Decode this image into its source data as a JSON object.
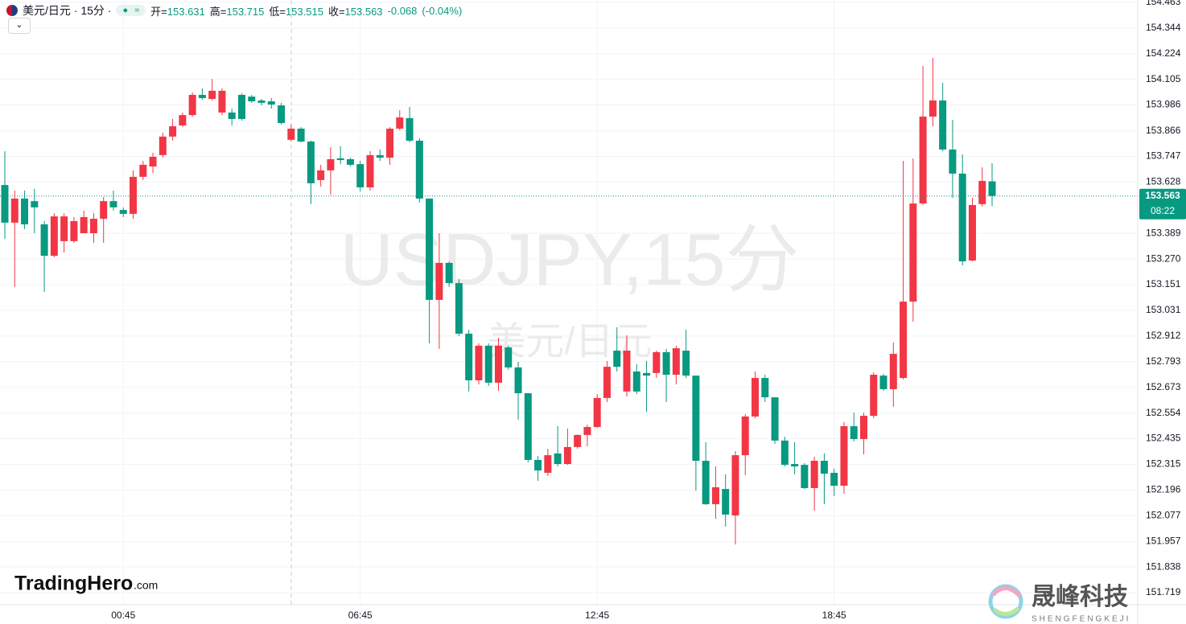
{
  "chart_data": {
    "type": "candlestick",
    "symbol_title": "美元/日元 · 15分 ·",
    "ohlc": [
      {
        "label": "开=",
        "value": 153.631
      },
      {
        "label": "高=",
        "value": 153.715
      },
      {
        "label": "低=",
        "value": 153.515
      },
      {
        "label": "收=",
        "value": 153.563
      }
    ],
    "change": -0.068,
    "change_pct": "(-0.04%)",
    "watermark": "USDJPY,15分",
    "watermark_sub": "美元/日元",
    "countdown": "08:22",
    "up_color": "#f23645",
    "down_color": "#089981",
    "grid": true,
    "categories": [
      null,
      null,
      null,
      null,
      null,
      null,
      null,
      null,
      null,
      null,
      null,
      null,
      "00:45",
      null,
      null,
      null,
      null,
      null,
      null,
      null,
      null,
      null,
      null,
      null,
      null,
      null,
      null,
      null,
      null,
      null,
      null,
      null,
      null,
      null,
      null,
      null,
      "06:45",
      null,
      null,
      null,
      null,
      null,
      null,
      null,
      null,
      null,
      null,
      null,
      null,
      null,
      null,
      null,
      null,
      null,
      null,
      null,
      null,
      null,
      null,
      null,
      "12:45",
      null,
      null,
      null,
      null,
      null,
      null,
      null,
      null,
      null,
      null,
      null,
      null,
      null,
      null,
      null,
      null,
      null,
      null,
      null,
      null,
      null,
      null,
      null,
      "18:45",
      null,
      null,
      null,
      null,
      null,
      null,
      null,
      null,
      null,
      null,
      null,
      null,
      null,
      null,
      null,
      null
    ],
    "open": [
      153.614,
      153.439,
      153.551,
      153.539,
      153.431,
      153.285,
      153.353,
      153.353,
      153.39,
      153.39,
      153.457,
      153.539,
      153.498,
      153.48,
      153.652,
      153.7,
      153.753,
      153.839,
      153.891,
      153.939,
      154.033,
      154.014,
      153.951,
      153.951,
      154.033,
      154.025,
      154.007,
      154.003,
      153.984,
      153.824,
      153.876,
      153.816,
      153.637,
      153.682,
      153.738,
      153.734,
      153.711,
      153.603,
      153.753,
      153.741,
      153.876,
      153.925,
      153.82,
      153.551,
      153.08,
      153.252,
      153.158,
      152.923,
      152.706,
      152.867,
      152.695,
      152.859,
      152.766,
      152.646,
      152.336,
      152.276,
      152.366,
      152.317,
      152.396,
      152.452,
      152.489,
      152.624,
      152.844,
      152.654,
      152.747,
      152.74,
      152.74,
      152.837,
      152.732,
      152.844,
      152.728,
      152.332,
      152.13,
      152.201,
      152.078,
      152.358,
      152.538,
      152.717,
      152.627,
      152.426,
      152.317,
      152.313,
      152.205,
      152.332,
      152.276,
      152.216,
      152.493,
      152.433,
      152.541,
      152.728,
      152.665,
      152.717,
      153.072,
      153.528,
      153.932,
      154.007,
      153.779,
      153.667,
      153.263,
      153.525,
      153.631
    ],
    "high": [
      153.771,
      153.588,
      153.588,
      153.596,
      153.446,
      153.483,
      153.483,
      153.465,
      153.495,
      153.483,
      153.558,
      153.588,
      153.51,
      153.682,
      153.726,
      153.764,
      153.857,
      153.921,
      153.951,
      154.044,
      154.063,
      154.108,
      154.063,
      153.969,
      154.04,
      154.033,
      154.014,
      154.018,
      153.996,
      153.895,
      153.883,
      153.82,
      153.708,
      153.79,
      153.794,
      153.741,
      153.726,
      153.771,
      153.779,
      153.883,
      153.962,
      153.977,
      153.831,
      153.551,
      153.39,
      153.259,
      153.177,
      152.941,
      152.878,
      152.878,
      152.904,
      152.867,
      152.792,
      152.646,
      152.355,
      152.388,
      152.493,
      152.482,
      152.455,
      152.5,
      152.642,
      152.796,
      152.953,
      152.915,
      152.781,
      152.796,
      152.844,
      152.852,
      152.867,
      152.941,
      152.728,
      152.418,
      152.306,
      152.269,
      152.377,
      152.549,
      152.747,
      152.732,
      152.627,
      152.444,
      152.418,
      152.321,
      152.351,
      152.366,
      152.295,
      152.512,
      152.556,
      152.556,
      152.743,
      152.736,
      152.882,
      153.726,
      153.738,
      154.167,
      154.205,
      154.089,
      153.917,
      153.756,
      153.554,
      153.696,
      153.715
    ],
    "low": [
      153.364,
      153.14,
      153.409,
      153.39,
      153.117,
      153.278,
      153.3,
      153.345,
      153.39,
      153.345,
      153.345,
      153.495,
      153.465,
      153.457,
      153.637,
      153.67,
      153.741,
      153.82,
      153.883,
      153.932,
      154.01,
      154.007,
      153.939,
      153.891,
      153.913,
      153.996,
      153.984,
      153.969,
      153.895,
      153.816,
      153.812,
      153.525,
      153.607,
      153.569,
      153.711,
      153.7,
      153.584,
      153.588,
      153.726,
      153.708,
      153.868,
      153.812,
      153.532,
      152.878,
      152.852,
      153.14,
      152.911,
      152.654,
      152.687,
      152.68,
      152.657,
      152.755,
      152.523,
      152.325,
      152.239,
      152.261,
      152.306,
      152.313,
      152.388,
      152.399,
      152.485,
      152.605,
      152.747,
      152.631,
      152.642,
      152.56,
      152.717,
      152.605,
      152.687,
      152.717,
      152.194,
      152.127,
      152.063,
      152.026,
      151.943,
      152.265,
      152.53,
      152.605,
      152.411,
      152.306,
      152.269,
      152.201,
      152.1,
      152.13,
      152.168,
      152.179,
      152.422,
      152.362,
      152.53,
      152.657,
      152.583,
      152.71,
      152.979,
      153.521,
      153.887,
      153.771,
      153.554,
      153.24,
      153.259,
      153.513,
      153.515
    ],
    "close": [
      153.439,
      153.551,
      153.431,
      153.51,
      153.285,
      153.468,
      153.468,
      153.446,
      153.465,
      153.457,
      153.539,
      153.51,
      153.48,
      153.652,
      153.708,
      153.745,
      153.839,
      153.887,
      153.939,
      154.033,
      154.018,
      154.052,
      154.052,
      153.921,
      153.921,
      154.003,
      153.996,
      153.988,
      153.902,
      153.876,
      153.816,
      153.622,
      153.682,
      153.734,
      153.73,
      153.708,
      153.603,
      153.753,
      153.741,
      153.876,
      153.928,
      153.82,
      153.551,
      153.08,
      153.252,
      153.158,
      152.923,
      152.706,
      152.867,
      152.695,
      152.867,
      152.766,
      152.646,
      152.336,
      152.287,
      152.358,
      152.317,
      152.396,
      152.452,
      152.489,
      152.624,
      152.769,
      152.769,
      152.844,
      152.654,
      152.728,
      152.837,
      152.732,
      152.855,
      152.728,
      152.332,
      152.13,
      152.209,
      152.082,
      152.358,
      152.538,
      152.717,
      152.627,
      152.426,
      152.313,
      152.306,
      152.205,
      152.332,
      152.272,
      152.216,
      152.493,
      152.433,
      152.541,
      152.732,
      152.665,
      152.829,
      153.072,
      153.528,
      153.932,
      154.007,
      153.779,
      153.667,
      153.259,
      153.521,
      153.633,
      153.563
    ],
    "ylim": [
      151.663,
      154.474
    ],
    "yticks": [
      154.463,
      154.344,
      154.224,
      154.105,
      153.986,
      153.866,
      153.747,
      153.628,
      153.389,
      {
        "value": 153.27,
        "label": "153.270"
      },
      153.151,
      153.031,
      152.912,
      152.793,
      152.673,
      152.554,
      152.435,
      152.315,
      152.196,
      152.077,
      151.957,
      151.838,
      151.719
    ]
  },
  "branding": {
    "left_name": "TradingHero",
    "left_suffix": ".com",
    "right_name": "晟峰科技",
    "right_pinyin": "SHENGFENGKEJI"
  }
}
